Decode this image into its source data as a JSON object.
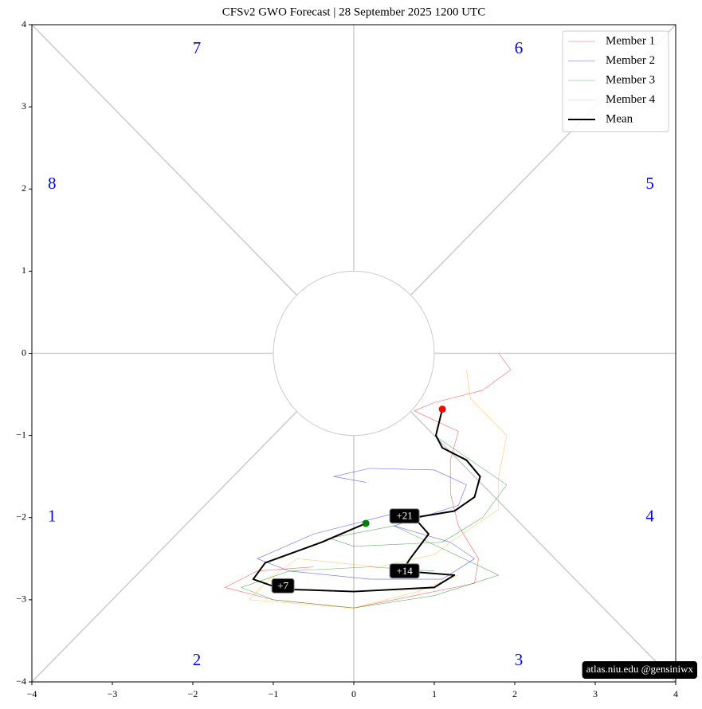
{
  "chart_data": {
    "type": "line",
    "title": "CFSv2 GWO Forecast   |   28  September  2025 1200 UTC",
    "xlim": [
      -4,
      4
    ],
    "ylim": [
      -4,
      4
    ],
    "xticks": [
      {
        "value": -4,
        "label": "−4"
      },
      {
        "value": -3,
        "label": "−3"
      },
      {
        "value": -2,
        "label": "−2"
      },
      {
        "value": -1,
        "label": "−1"
      },
      0,
      1,
      2,
      3,
      4
    ],
    "yticks": [
      {
        "value": -4,
        "label": "−4"
      },
      {
        "value": -3,
        "label": "−3"
      },
      {
        "value": -2,
        "label": "−2"
      },
      {
        "value": -1,
        "label": "−1"
      },
      0,
      1,
      2,
      3,
      4
    ],
    "phase_labels": [
      "1",
      "2",
      "3",
      "4",
      "5",
      "6",
      "7",
      "8"
    ],
    "legend": "upper right",
    "series": [
      {
        "name": "Member 1",
        "color": "#ff0000",
        "x": [
          1.8,
          1.95,
          1.6,
          1.0,
          0.75,
          1.3,
          1.2,
          1.2,
          1.3,
          1.55,
          1.5,
          1.0,
          0.0,
          -1.0,
          -1.6,
          -1.2,
          -0.5
        ],
        "values": [
          0.0,
          -0.2,
          -0.45,
          -0.6,
          -0.7,
          -0.95,
          -1.3,
          -1.7,
          -2.1,
          -2.5,
          -2.8,
          -2.9,
          -3.1,
          -3.0,
          -2.85,
          -2.65,
          -2.6
        ]
      },
      {
        "name": "Member 2",
        "color": "#0000ff",
        "x": [
          0.15,
          -0.25,
          0.2,
          1.0,
          1.4,
          1.3,
          0.5,
          1.2,
          1.5,
          1.1,
          0.2,
          -0.8,
          -1.2,
          -0.5,
          0.5
        ],
        "values": [
          -1.57,
          -1.5,
          -1.4,
          -1.42,
          -1.6,
          -1.85,
          -2.1,
          -2.3,
          -2.5,
          -2.75,
          -2.75,
          -2.65,
          -2.5,
          -2.2,
          -1.95
        ]
      },
      {
        "name": "Member 3",
        "color": "#008000",
        "x": [
          1.0,
          1.3,
          1.9,
          1.6,
          1.1,
          0.0,
          -0.3,
          0.5,
          1.8,
          1.0,
          0.0,
          -1.0,
          -1.4,
          -0.8,
          0.2,
          1.0
        ],
        "values": [
          -1.0,
          -1.2,
          -1.6,
          -2.0,
          -2.3,
          -2.35,
          -2.25,
          -2.1,
          -2.7,
          -2.95,
          -3.1,
          -3.0,
          -2.85,
          -2.65,
          -2.6,
          -2.65
        ]
      },
      {
        "name": "Member 4",
        "color": "#ffa500",
        "x": [
          1.4,
          1.45,
          1.9,
          1.8,
          1.8,
          1.2,
          1.0,
          0.3,
          -0.7,
          -1.0,
          -1.3,
          0.0,
          0.8,
          1.3
        ],
        "values": [
          -0.2,
          -0.55,
          -1.0,
          -1.5,
          -1.9,
          -2.3,
          -2.45,
          -2.6,
          -2.5,
          -2.7,
          -3.0,
          -3.1,
          -2.9,
          -2.7
        ]
      },
      {
        "name": "Mean",
        "color": "#000000",
        "start_color": "#008000",
        "end_color": "#ff0000",
        "x": [
          0.15,
          -0.4,
          -1.1,
          -1.25,
          -0.9,
          0.0,
          1.0,
          1.25,
          0.6,
          0.7,
          0.93,
          0.75,
          1.25,
          1.5,
          1.57,
          1.4,
          1.1,
          1.02,
          1.1
        ],
        "values": [
          -2.07,
          -2.3,
          -2.55,
          -2.75,
          -2.87,
          -2.9,
          -2.85,
          -2.7,
          -2.65,
          -2.5,
          -2.2,
          -2.0,
          -1.92,
          -1.75,
          -1.5,
          -1.3,
          -1.15,
          -1.0,
          -0.68
        ]
      }
    ],
    "annotations": [
      {
        "text": "+7",
        "x": -0.88,
        "y": -2.83
      },
      {
        "text": "+14",
        "x": 0.63,
        "y": -2.65
      },
      {
        "text": "+21",
        "x": 0.63,
        "y": -1.98
      }
    ],
    "watermark": "atlas.niu.edu  @gensiniwx"
  }
}
